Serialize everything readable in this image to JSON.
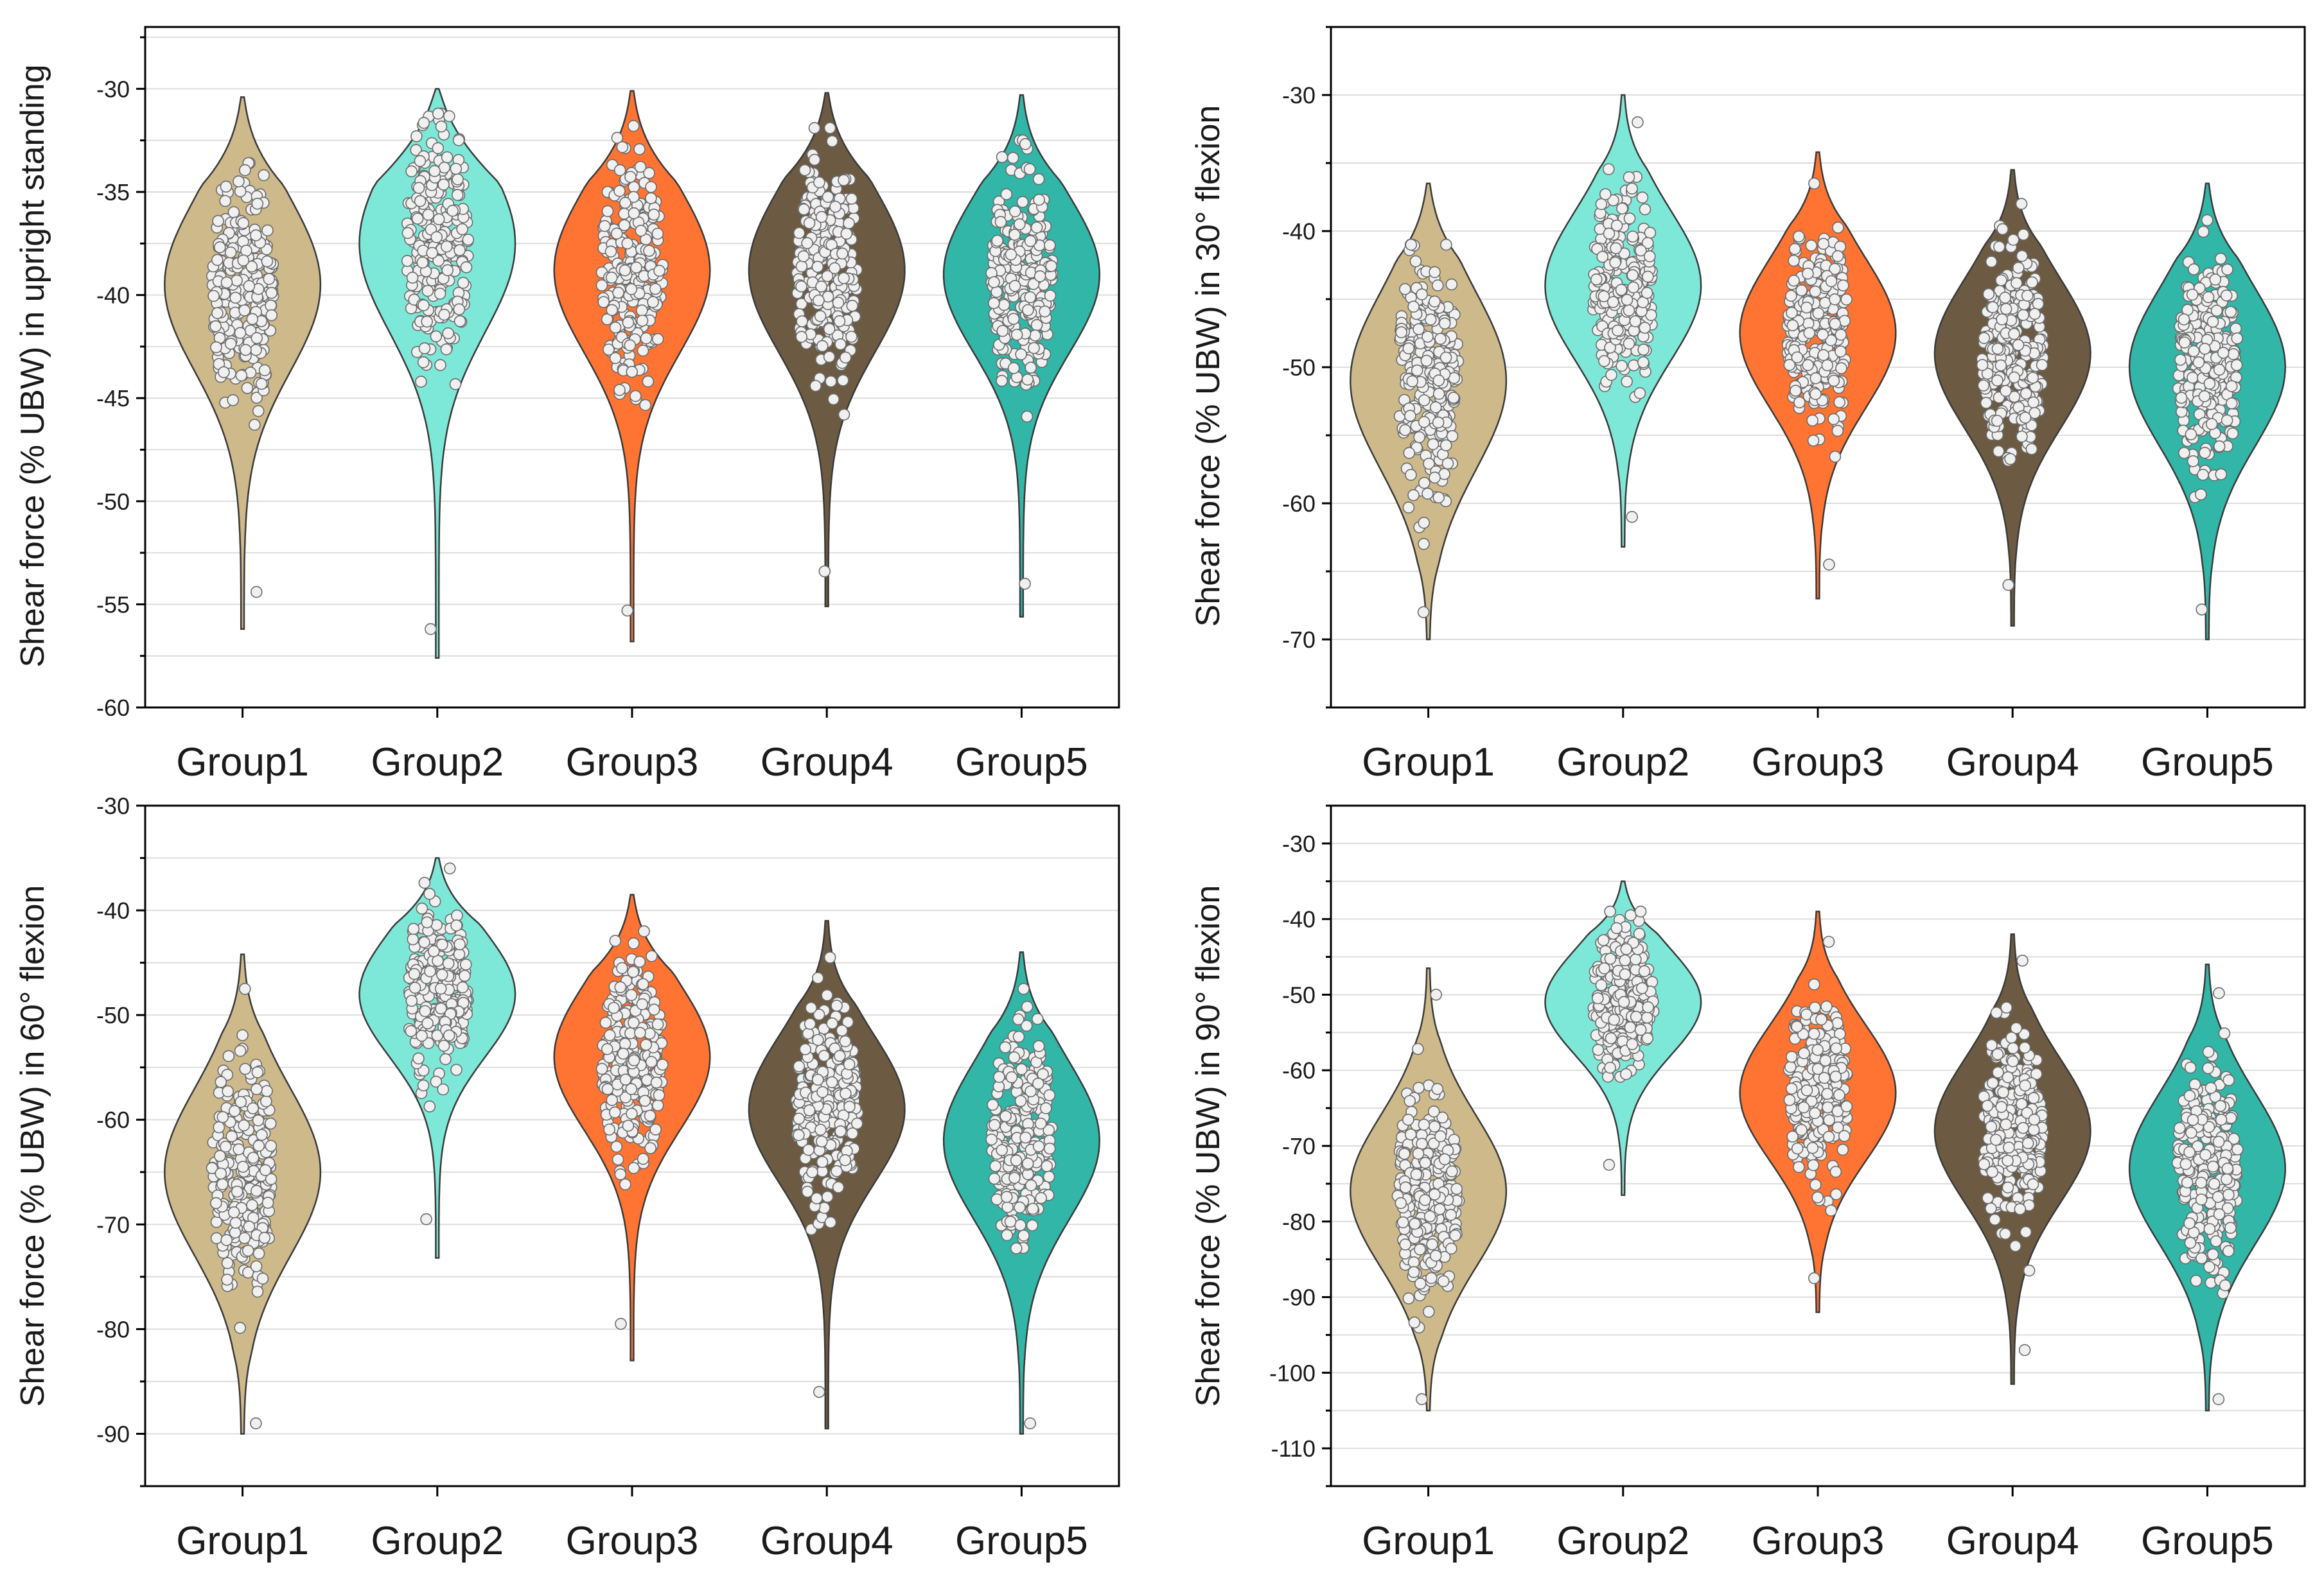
{
  "figure": {
    "point_fill": "#f0f0f0",
    "point_stroke": "#6b6b6b",
    "outline": "#3a3a3a",
    "grid": "#dddddd"
  },
  "chart_data": [
    {
      "type": "violin",
      "panel": "top-left",
      "ylabel": "Shear force (% UBW) in upright standing",
      "ylim": [
        -60,
        -27
      ],
      "yticks": [
        -30,
        -35,
        -40,
        -45,
        -50,
        -55,
        -60
      ],
      "categories": [
        "Group1",
        "Group2",
        "Group3",
        "Group4",
        "Group5"
      ],
      "colors": [
        "#cdb98a",
        "#7de8d8",
        "#ff7432",
        "#6c5b42",
        "#31b6a8"
      ],
      "series": [
        {
          "name": "Group1",
          "min": -56.2,
          "max": -30.4,
          "mode": -39.5,
          "spread": 4.2,
          "points_min": -54.4,
          "points_max": -33.6
        },
        {
          "name": "Group2",
          "min": -57.6,
          "max": -30.0,
          "mode": -37.5,
          "spread": 4.3,
          "points_min": -56.2,
          "points_max": -31.2
        },
        {
          "name": "Group3",
          "min": -56.8,
          "max": -30.1,
          "mode": -38.8,
          "spread": 4.0,
          "points_min": -55.3,
          "points_max": -31.8
        },
        {
          "name": "Group4",
          "min": -55.1,
          "max": -30.2,
          "mode": -38.8,
          "spread": 4.0,
          "points_min": -53.4,
          "points_max": -31.9
        },
        {
          "name": "Group5",
          "min": -55.6,
          "max": -30.3,
          "mode": -39.0,
          "spread": 3.8,
          "points_min": -54.0,
          "points_max": -32.5
        }
      ]
    },
    {
      "type": "violin",
      "panel": "top-right",
      "ylabel": "Shear force (% UBW) in 30° flexion",
      "ylim": [
        -75,
        -25
      ],
      "yticks": [
        -30,
        -40,
        -50,
        -60,
        -70
      ],
      "categories": [
        "Group1",
        "Group2",
        "Group3",
        "Group4",
        "Group5"
      ],
      "colors": [
        "#cdb98a",
        "#7de8d8",
        "#ff7432",
        "#6c5b42",
        "#31b6a8"
      ],
      "series": [
        {
          "name": "Group1",
          "min": -70.0,
          "max": -36.5,
          "mode": -51.0,
          "spread": 6.5,
          "points_min": -68.0,
          "points_max": -41.0
        },
        {
          "name": "Group2",
          "min": -63.2,
          "max": -30.0,
          "mode": -44.0,
          "spread": 5.5,
          "points_min": -61.0,
          "points_max": -32.0
        },
        {
          "name": "Group3",
          "min": -67.0,
          "max": -34.2,
          "mode": -47.5,
          "spread": 5.5,
          "points_min": -64.5,
          "points_max": -36.5
        },
        {
          "name": "Group4",
          "min": -69.0,
          "max": -35.5,
          "mode": -49.0,
          "spread": 5.5,
          "points_min": -66.0,
          "points_max": -38.0
        },
        {
          "name": "Group5",
          "min": -70.0,
          "max": -36.5,
          "mode": -50.0,
          "spread": 5.8,
          "points_min": -67.8,
          "points_max": -39.2
        }
      ]
    },
    {
      "type": "violin",
      "panel": "bottom-left",
      "ylabel": "Shear force (% UBW) in 60° flexion",
      "ylim": [
        -95,
        -30
      ],
      "yticks": [
        -30,
        -40,
        -50,
        -60,
        -70,
        -80,
        -90
      ],
      "categories": [
        "Group1",
        "Group2",
        "Group3",
        "Group4",
        "Group5"
      ],
      "colors": [
        "#cdb98a",
        "#7de8d8",
        "#ff7432",
        "#6c5b42",
        "#31b6a8"
      ],
      "series": [
        {
          "name": "Group1",
          "min": -90.0,
          "max": -44.2,
          "mode": -65.0,
          "spread": 8.0,
          "points_min": -89.0,
          "points_max": -47.5
        },
        {
          "name": "Group2",
          "min": -73.2,
          "max": -35.0,
          "mode": -48.0,
          "spread": 6.0,
          "points_min": -69.5,
          "points_max": -36.0
        },
        {
          "name": "Group3",
          "min": -83.0,
          "max": -38.5,
          "mode": -54.0,
          "spread": 7.0,
          "points_min": -79.5,
          "points_max": -42.0
        },
        {
          "name": "Group4",
          "min": -89.5,
          "max": -41.0,
          "mode": -59.0,
          "spread": 7.0,
          "points_min": -86.0,
          "points_max": -44.5
        },
        {
          "name": "Group5",
          "min": -90.0,
          "max": -44.0,
          "mode": -62.0,
          "spread": 7.5,
          "points_min": -89.0,
          "points_max": -47.5
        }
      ]
    },
    {
      "type": "violin",
      "panel": "bottom-right",
      "ylabel": "Shear force (% UBW) in 90° flexion",
      "ylim": [
        -115,
        -25
      ],
      "yticks": [
        -30,
        -40,
        -50,
        -60,
        -70,
        -80,
        -90,
        -100,
        -110
      ],
      "categories": [
        "Group1",
        "Group2",
        "Group3",
        "Group4",
        "Group5"
      ],
      "colors": [
        "#cdb98a",
        "#7de8d8",
        "#ff7432",
        "#6c5b42",
        "#31b6a8"
      ],
      "series": [
        {
          "name": "Group1",
          "min": -105.0,
          "max": -46.5,
          "mode": -76.0,
          "spread": 10.0,
          "points_min": -103.5,
          "points_max": -50.0
        },
        {
          "name": "Group2",
          "min": -76.5,
          "max": -35.0,
          "mode": -51.0,
          "spread": 7.0,
          "points_min": -72.5,
          "points_max": -39.0
        },
        {
          "name": "Group3",
          "min": -92.0,
          "max": -39.0,
          "mode": -63.0,
          "spread": 9.0,
          "points_min": -87.5,
          "points_max": -43.0
        },
        {
          "name": "Group4",
          "min": -101.5,
          "max": -42.0,
          "mode": -68.0,
          "spread": 9.5,
          "points_min": -97.0,
          "points_max": -45.5
        },
        {
          "name": "Group5",
          "min": -105.0,
          "max": -46.0,
          "mode": -73.0,
          "spread": 10.0,
          "points_min": -103.5,
          "points_max": -49.8
        }
      ]
    }
  ]
}
